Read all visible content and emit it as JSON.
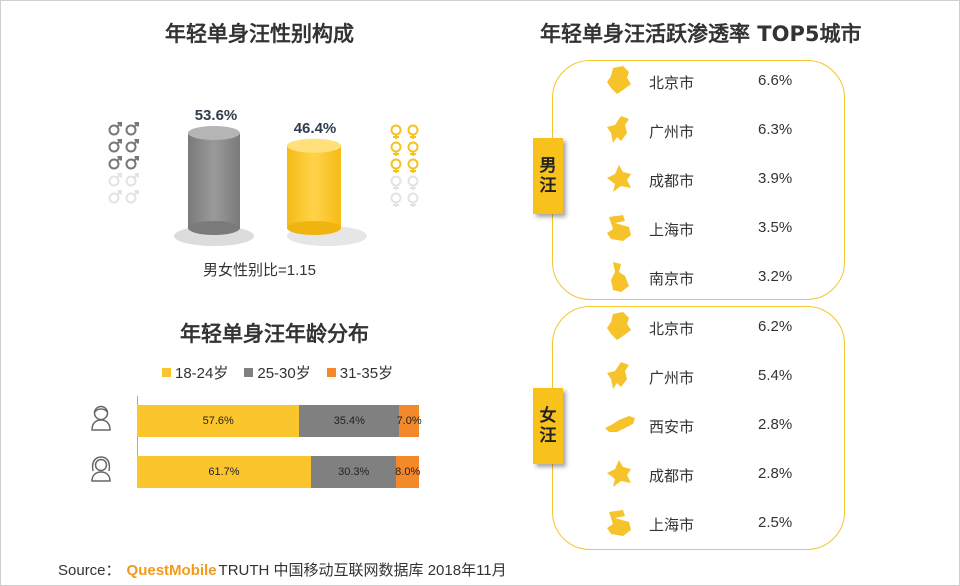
{
  "gender": {
    "title": "年轻单身汪性别构成",
    "male_pct": "53.6%",
    "female_pct": "46.4%",
    "ratio_label": "男女性别比=1.15",
    "male_icon_filled": 3,
    "female_icon_filled": 3,
    "icons_total": 5
  },
  "age": {
    "title": "年轻单身汪年龄分布",
    "legend": [
      "18-24岁",
      "25-30岁",
      "31-35岁"
    ],
    "colors": [
      "#fbc52d",
      "#808080",
      "#f3892b"
    ]
  },
  "cities": {
    "title": "年轻单身汪活跃渗透率 TOP5城市",
    "male_tag": [
      "男",
      "汪"
    ],
    "female_tag": [
      "女",
      "汪"
    ],
    "male": [
      {
        "city": "北京市",
        "pct": "6.6%",
        "icon": "beijing-map-icon"
      },
      {
        "city": "广州市",
        "pct": "6.3%",
        "icon": "guangzhou-map-icon"
      },
      {
        "city": "成都市",
        "pct": "3.9%",
        "icon": "chengdu-map-icon"
      },
      {
        "city": "上海市",
        "pct": "3.5%",
        "icon": "shanghai-map-icon"
      },
      {
        "city": "南京市",
        "pct": "3.2%",
        "icon": "nanjing-map-icon"
      }
    ],
    "female": [
      {
        "city": "北京市",
        "pct": "6.2%",
        "icon": "beijing-map-icon"
      },
      {
        "city": "广州市",
        "pct": "5.4%",
        "icon": "guangzhou-map-icon"
      },
      {
        "city": "西安市",
        "pct": "2.8%",
        "icon": "xian-map-icon"
      },
      {
        "city": "成都市",
        "pct": "2.8%",
        "icon": "chengdu-map-icon"
      },
      {
        "city": "上海市",
        "pct": "2.5%",
        "icon": "shanghai-map-icon"
      }
    ]
  },
  "source": {
    "prefix": "Source：",
    "brand": "QuestMobile",
    "text": "TRUTH 中国移动互联网数据库 2018年11月"
  },
  "chart_data": [
    {
      "type": "bar",
      "title": "年轻单身汪性别构成",
      "categories": [
        "男",
        "女"
      ],
      "values": [
        53.6,
        46.4
      ],
      "colors": [
        "#8c8c8c",
        "#fbc52d"
      ],
      "ylim": [
        0,
        60
      ],
      "annotations": [
        "男女性别比=1.15"
      ]
    },
    {
      "type": "bar",
      "stacked": true,
      "orientation": "horizontal",
      "title": "年轻单身汪年龄分布",
      "categories": [
        "男",
        "女"
      ],
      "series": [
        {
          "name": "18-24岁",
          "values": [
            57.6,
            61.7
          ],
          "color": "#fbc52d"
        },
        {
          "name": "25-30岁",
          "values": [
            35.4,
            30.3
          ],
          "color": "#808080"
        },
        {
          "name": "31-35岁",
          "values": [
            7.0,
            8.0
          ],
          "color": "#f3892b"
        }
      ],
      "xlim": [
        0,
        100
      ],
      "legend": "top"
    },
    {
      "type": "table",
      "title": "年轻单身汪活跃渗透率 TOP5城市",
      "columns": [
        "group",
        "city",
        "pct"
      ],
      "rows": [
        [
          "男汪",
          "北京市",
          "6.6%"
        ],
        [
          "男汪",
          "广州市",
          "6.3%"
        ],
        [
          "男汪",
          "成都市",
          "3.9%"
        ],
        [
          "男汪",
          "上海市",
          "3.5%"
        ],
        [
          "男汪",
          "南京市",
          "3.2%"
        ],
        [
          "女汪",
          "北京市",
          "6.2%"
        ],
        [
          "女汪",
          "广州市",
          "5.4%"
        ],
        [
          "女汪",
          "西安市",
          "2.8%"
        ],
        [
          "女汪",
          "成都市",
          "2.8%"
        ],
        [
          "女汪",
          "上海市",
          "2.5%"
        ]
      ]
    }
  ]
}
